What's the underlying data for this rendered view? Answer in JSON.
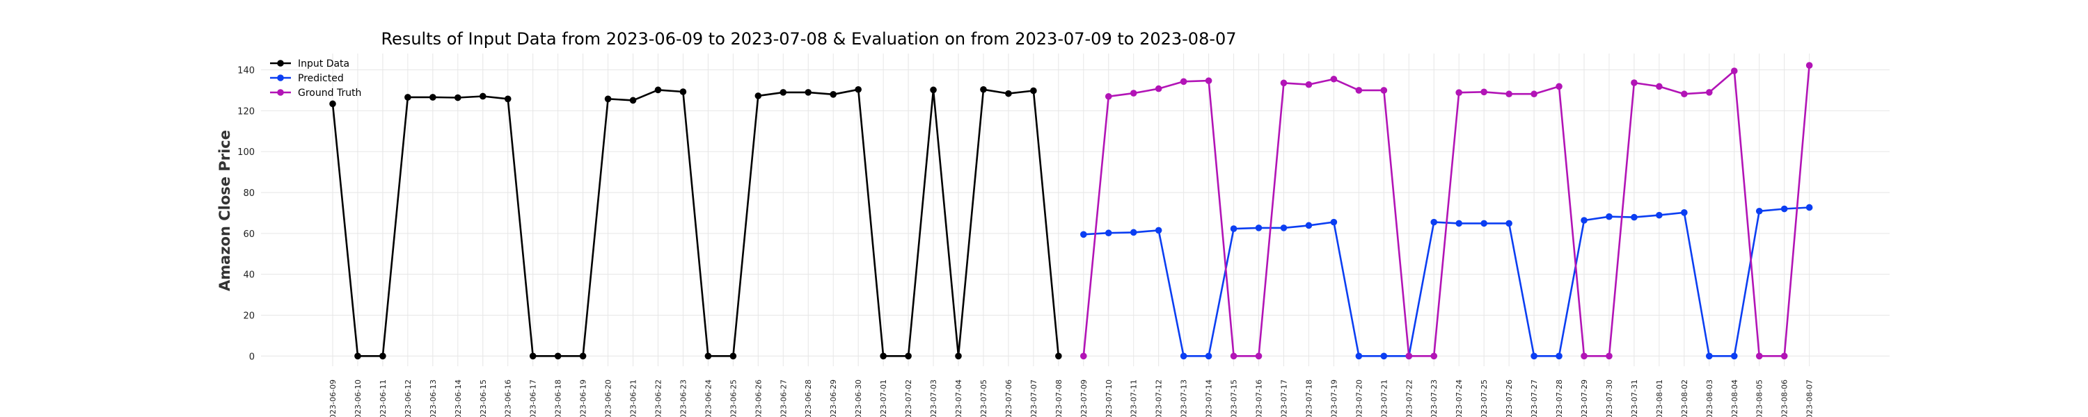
{
  "chart_data": {
    "type": "line",
    "title": "Results of Input Data from 2023-06-09 to 2023-07-08 & Evaluation on from 2023-07-09 to 2023-08-07",
    "xlabel": "",
    "ylabel": "Amazon Close Price",
    "ylim": [
      -5,
      148
    ],
    "yticks": [
      0,
      20,
      40,
      60,
      80,
      100,
      120,
      140
    ],
    "grid": true,
    "legend_position": "top-left",
    "x": [
      "2023-06-09",
      "2023-06-10",
      "2023-06-11",
      "2023-06-12",
      "2023-06-13",
      "2023-06-14",
      "2023-06-15",
      "2023-06-16",
      "2023-06-17",
      "2023-06-18",
      "2023-06-19",
      "2023-06-20",
      "2023-06-21",
      "2023-06-22",
      "2023-06-23",
      "2023-06-24",
      "2023-06-25",
      "2023-06-26",
      "2023-06-27",
      "2023-06-28",
      "2023-06-29",
      "2023-06-30",
      "2023-07-01",
      "2023-07-02",
      "2023-07-03",
      "2023-07-04",
      "2023-07-05",
      "2023-07-06",
      "2023-07-07",
      "2023-07-08",
      "2023-07-09",
      "2023-07-10",
      "2023-07-11",
      "2023-07-12",
      "2023-07-13",
      "2023-07-14",
      "2023-07-15",
      "2023-07-16",
      "2023-07-17",
      "2023-07-18",
      "2023-07-19",
      "2023-07-20",
      "2023-07-21",
      "2023-07-22",
      "2023-07-23",
      "2023-07-24",
      "2023-07-25",
      "2023-07-26",
      "2023-07-27",
      "2023-07-28",
      "2023-07-29",
      "2023-07-30",
      "2023-07-31",
      "2023-08-01",
      "2023-08-02",
      "2023-08-03",
      "2023-08-04",
      "2023-08-05",
      "2023-08-06",
      "2023-08-07"
    ],
    "xtick_labels": [
      "023-06-09",
      "023-06-10",
      "023-06-11",
      "023-06-12",
      "023-06-13",
      "023-06-14",
      "023-06-15",
      "023-06-16",
      "023-06-17",
      "023-06-18",
      "023-06-19",
      "023-06-20",
      "023-06-21",
      "023-06-22",
      "023-06-23",
      "023-06-24",
      "023-06-25",
      "023-06-26",
      "023-06-27",
      "023-06-28",
      "023-06-29",
      "023-06-30",
      "023-07-01",
      "023-07-02",
      "023-07-03",
      "023-07-04",
      "023-07-05",
      "023-07-06",
      "023-07-07",
      "023-07-08",
      "023-07-09",
      "023-07-10",
      "023-07-11",
      "023-07-12",
      "023-07-13",
      "023-07-14",
      "023-07-15",
      "023-07-16",
      "023-07-17",
      "023-07-18",
      "023-07-19",
      "023-07-20",
      "023-07-21",
      "023-07-22",
      "023-07-23",
      "023-07-24",
      "023-07-25",
      "023-07-26",
      "023-07-27",
      "023-07-28",
      "023-07-29",
      "023-07-30",
      "023-07-31",
      "023-08-01",
      "023-08-02",
      "023-08-03",
      "023-08-04",
      "023-08-05",
      "023-08-06",
      "023-08-07"
    ],
    "series": [
      {
        "name": "Input Data",
        "color": "#000000",
        "x": [
          "2023-06-09",
          "2023-06-10",
          "2023-06-11",
          "2023-06-12",
          "2023-06-13",
          "2023-06-14",
          "2023-06-15",
          "2023-06-16",
          "2023-06-17",
          "2023-06-18",
          "2023-06-19",
          "2023-06-20",
          "2023-06-21",
          "2023-06-22",
          "2023-06-23",
          "2023-06-24",
          "2023-06-25",
          "2023-06-26",
          "2023-06-27",
          "2023-06-28",
          "2023-06-29",
          "2023-06-30",
          "2023-07-01",
          "2023-07-02",
          "2023-07-03",
          "2023-07-04",
          "2023-07-05",
          "2023-07-06",
          "2023-07-07",
          "2023-07-08"
        ],
        "values": [
          123.4,
          0,
          0,
          126.6,
          126.6,
          126.4,
          127.1,
          125.8,
          0,
          0,
          0,
          125.8,
          125.1,
          130.2,
          129.3,
          0,
          0,
          127.3,
          129.0,
          129.0,
          128.0,
          130.4,
          0,
          0,
          130.2,
          0,
          130.4,
          128.4,
          129.8,
          0
        ]
      },
      {
        "name": "Predicted",
        "color": "#0b3ef2",
        "x": [
          "2023-07-09",
          "2023-07-10",
          "2023-07-11",
          "2023-07-12",
          "2023-07-13",
          "2023-07-14",
          "2023-07-15",
          "2023-07-16",
          "2023-07-17",
          "2023-07-18",
          "2023-07-19",
          "2023-07-20",
          "2023-07-21",
          "2023-07-22",
          "2023-07-23",
          "2023-07-24",
          "2023-07-25",
          "2023-07-26",
          "2023-07-27",
          "2023-07-28",
          "2023-07-29",
          "2023-07-30",
          "2023-07-31",
          "2023-08-01",
          "2023-08-02",
          "2023-08-03",
          "2023-08-04",
          "2023-08-05",
          "2023-08-06",
          "2023-08-07"
        ],
        "values": [
          59.5,
          60.2,
          60.5,
          61.5,
          0,
          0,
          62.3,
          62.7,
          62.7,
          63.9,
          65.5,
          0,
          0,
          0,
          65.5,
          64.9,
          64.9,
          64.9,
          0,
          0,
          66.4,
          68.2,
          67.9,
          68.9,
          70.2,
          0,
          0,
          70.9,
          72.0,
          72.7
        ]
      },
      {
        "name": "Ground Truth",
        "color": "#b214b6",
        "x": [
          "2023-07-09",
          "2023-07-10",
          "2023-07-11",
          "2023-07-12",
          "2023-07-13",
          "2023-07-14",
          "2023-07-15",
          "2023-07-16",
          "2023-07-17",
          "2023-07-18",
          "2023-07-19",
          "2023-07-20",
          "2023-07-21",
          "2023-07-22",
          "2023-07-23",
          "2023-07-24",
          "2023-07-25",
          "2023-07-26",
          "2023-07-27",
          "2023-07-28",
          "2023-07-29",
          "2023-07-30",
          "2023-07-31",
          "2023-08-01",
          "2023-08-02",
          "2023-08-03",
          "2023-08-04",
          "2023-08-05",
          "2023-08-06",
          "2023-08-07"
        ],
        "values": [
          0,
          127.0,
          128.6,
          130.8,
          134.3,
          134.7,
          0,
          0,
          133.6,
          132.8,
          135.5,
          130.0,
          130.0,
          0,
          0,
          128.9,
          129.2,
          128.2,
          128.2,
          131.9,
          0,
          0,
          133.7,
          131.9,
          128.2,
          129.0,
          139.5,
          0,
          0,
          142.2
        ]
      }
    ]
  }
}
